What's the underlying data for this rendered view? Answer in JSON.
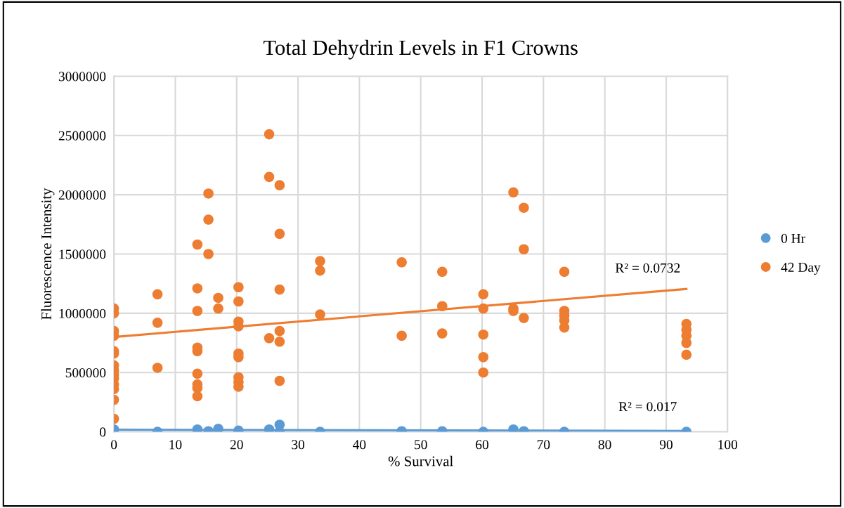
{
  "chart_data": {
    "type": "scatter",
    "title": "Total Dehydrin Levels in F1 Crowns",
    "xlabel": "% Survival",
    "ylabel": "Fluorescence Intensity",
    "xlim": [
      0,
      100
    ],
    "xticks": [
      0,
      10,
      20,
      30,
      40,
      50,
      60,
      70,
      80,
      90,
      100
    ],
    "ylim": [
      0,
      3000000
    ],
    "yticks": [
      0,
      500000,
      1000000,
      1500000,
      2000000,
      2500000,
      3000000
    ],
    "grid": true,
    "legend": "right",
    "marker": "circle",
    "series": [
      {
        "name": "0 Hr",
        "color": "#5b9bd5",
        "x": [
          0,
          7.1,
          13.6,
          15.4,
          17.0,
          20.3,
          25.3,
          27.0,
          27.0,
          33.6,
          46.9,
          53.5,
          60.2,
          65.1,
          66.8,
          73.4,
          93.3
        ],
        "values": [
          20000,
          0,
          20000,
          5000,
          25000,
          10000,
          20000,
          60000,
          0,
          0,
          5000,
          5000,
          0,
          20000,
          5000,
          0,
          0
        ]
      },
      {
        "name": "42 Day",
        "color": "#ed7d31",
        "x": [
          0,
          0,
          0,
          0,
          0,
          0,
          0,
          0,
          0,
          0,
          0,
          0,
          0,
          0,
          7.1,
          7.1,
          7.1,
          13.6,
          13.6,
          13.6,
          13.6,
          13.6,
          13.6,
          13.6,
          13.6,
          13.6,
          15.4,
          15.4,
          15.4,
          17.0,
          17.0,
          20.3,
          20.3,
          20.3,
          20.3,
          20.3,
          20.3,
          20.3,
          20.3,
          20.3,
          25.3,
          25.3,
          25.3,
          27.0,
          27.0,
          27.0,
          27.0,
          27.0,
          27.0,
          33.6,
          33.6,
          33.6,
          46.9,
          46.9,
          53.5,
          53.5,
          53.5,
          60.2,
          60.2,
          60.2,
          60.2,
          60.2,
          65.1,
          65.1,
          65.1,
          66.8,
          66.8,
          66.8,
          73.4,
          73.4,
          73.4,
          73.4,
          73.4,
          93.3,
          93.3,
          93.3,
          93.3,
          93.3
        ],
        "values": [
          1040000,
          1000000,
          850000,
          810000,
          680000,
          660000,
          560000,
          520000,
          480000,
          450000,
          400000,
          360000,
          270000,
          110000,
          1160000,
          920000,
          540000,
          1580000,
          1210000,
          1020000,
          710000,
          680000,
          490000,
          400000,
          370000,
          300000,
          2010000,
          1790000,
          1500000,
          1130000,
          1040000,
          1220000,
          1100000,
          930000,
          890000,
          660000,
          630000,
          460000,
          420000,
          380000,
          2510000,
          2150000,
          790000,
          2080000,
          1670000,
          1200000,
          850000,
          760000,
          430000,
          1440000,
          1360000,
          990000,
          1430000,
          810000,
          1350000,
          1060000,
          830000,
          1160000,
          1040000,
          820000,
          630000,
          500000,
          2020000,
          1040000,
          1020000,
          1890000,
          1540000,
          960000,
          1350000,
          1020000,
          980000,
          940000,
          880000,
          910000,
          860000,
          810000,
          750000,
          650000
        ]
      },
      {
        "type": "line",
        "marker": "none",
        "color": "#5b9bd5",
        "x": [
          0,
          93.3
        ],
        "values": [
          18000,
          8000
        ]
      },
      {
        "type": "line",
        "marker": "none",
        "color": "#ed7d31",
        "x": [
          0,
          93.3
        ],
        "values": [
          800000,
          1205000
        ]
      }
    ],
    "annotations": [
      "R² = 0.0732",
      "R² = 0.017"
    ]
  }
}
